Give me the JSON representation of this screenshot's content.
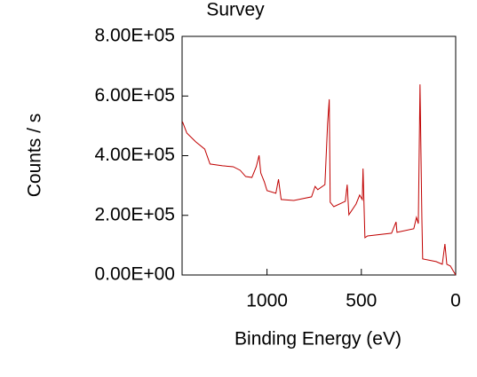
{
  "chart_data": {
    "type": "line",
    "title": "Survey",
    "xlabel": "Binding Energy (eV)",
    "ylabel": "Counts / s",
    "color": "#c00000",
    "xlim": [
      1450,
      0
    ],
    "xticks": [
      1000,
      500,
      0
    ],
    "ylim": [
      0,
      800000
    ],
    "yticks": [
      {
        "value": 0,
        "label": "0.00E+00"
      },
      {
        "value": 200000,
        "label": "2.00E+05"
      },
      {
        "value": 400000,
        "label": "4.00E+05"
      },
      {
        "value": 600000,
        "label": "6.00E+05"
      },
      {
        "value": 800000,
        "label": "8.00E+05"
      }
    ],
    "x": [
      1448,
      1425,
      1377,
      1330,
      1302,
      1236,
      1179,
      1142,
      1113,
      1080,
      1057,
      1042,
      1033,
      1014,
      1000,
      953,
      939,
      925,
      858,
      764,
      745,
      731,
      693,
      679,
      670,
      665,
      646,
      585,
      575,
      566,
      528,
      509,
      495,
      491,
      481,
      467,
      340,
      316,
      311,
      222,
      208,
      198,
      189,
      179,
      175,
      104,
      71,
      57,
      47,
      28,
      14,
      0
    ],
    "values": [
      514000,
      476000,
      446000,
      422000,
      372000,
      366000,
      363000,
      351000,
      330000,
      327000,
      363000,
      401000,
      342000,
      312000,
      283000,
      274000,
      321000,
      253000,
      250000,
      262000,
      297000,
      286000,
      303000,
      506000,
      589000,
      244000,
      229000,
      247000,
      303000,
      202000,
      238000,
      268000,
      253000,
      357000,
      125000,
      131000,
      140000,
      178000,
      143000,
      155000,
      193000,
      172000,
      639000,
      184000,
      54000,
      45000,
      36000,
      104000,
      36000,
      30000,
      15000,
      0
    ]
  }
}
